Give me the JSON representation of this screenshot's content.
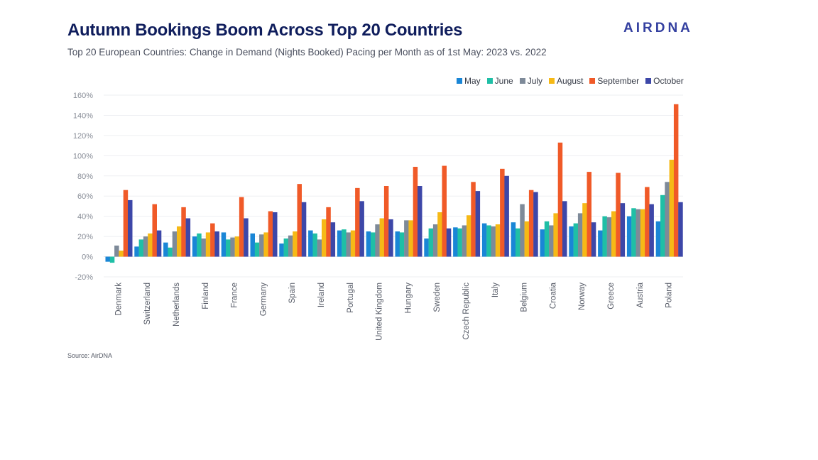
{
  "header": {
    "title": "Autumn Bookings Boom Across Top 20 Countries",
    "subtitle": "Top 20 European Countries: Change in Demand (Nights Booked) Pacing per Month as of 1st May: 2023 vs. 2022",
    "logo": "AIRDNA"
  },
  "footer": {
    "source": "Source: AirDNA"
  },
  "chart_data": {
    "type": "bar",
    "title": "Autumn Bookings Boom Across Top 20 Countries",
    "subtitle": "Top 20 European Countries: Change in Demand (Nights Booked) Pacing per Month as of 1st May: 2023 vs. 2022",
    "xlabel": "",
    "ylabel": "",
    "ylim": [
      -20,
      160
    ],
    "yticks": [
      -20,
      0,
      20,
      40,
      60,
      80,
      100,
      120,
      140,
      160
    ],
    "ytick_labels": [
      "-20%",
      "0%",
      "20%",
      "40%",
      "60%",
      "80%",
      "100%",
      "120%",
      "140%",
      "160%"
    ],
    "grid": true,
    "legend_position": "top-right",
    "categories": [
      "Denmark",
      "Switzerland",
      "Netherlands",
      "Finland",
      "France",
      "Germany",
      "Spain",
      "Ireland",
      "Portugal",
      "United Kingdom",
      "Hungary",
      "Sweden",
      "Czech Republic",
      "Italy",
      "Belgium",
      "Croatia",
      "Norway",
      "Greece",
      "Austria",
      "Poland"
    ],
    "series": [
      {
        "name": "May",
        "color": "#1a86d6",
        "values": [
          -5,
          10,
          14,
          20,
          24,
          23,
          13,
          26,
          26,
          25,
          25,
          18,
          29,
          33,
          34,
          27,
          30,
          26,
          40,
          35
        ]
      },
      {
        "name": "June",
        "color": "#1fbfa6",
        "values": [
          -6,
          17,
          9,
          23,
          17,
          14,
          18,
          23,
          27,
          24,
          24,
          28,
          28,
          31,
          28,
          35,
          33,
          40,
          48,
          61
        ]
      },
      {
        "name": "July",
        "color": "#7e8a99",
        "values": [
          11,
          20,
          25,
          18,
          19,
          22,
          21,
          17,
          24,
          32,
          36,
          32,
          31,
          30,
          52,
          31,
          43,
          39,
          47,
          74
        ]
      },
      {
        "name": "August",
        "color": "#f6b916",
        "values": [
          6,
          23,
          30,
          24,
          20,
          24,
          25,
          37,
          26,
          38,
          36,
          44,
          41,
          32,
          35,
          43,
          53,
          45,
          47,
          96
        ]
      },
      {
        "name": "September",
        "color": "#f05a28",
        "values": [
          66,
          52,
          49,
          33,
          59,
          45,
          72,
          49,
          68,
          70,
          89,
          90,
          74,
          87,
          66,
          113,
          84,
          83,
          69,
          151
        ]
      },
      {
        "name": "October",
        "color": "#3d47a8",
        "values": [
          56,
          26,
          38,
          25,
          38,
          44,
          54,
          34,
          55,
          37,
          70,
          28,
          65,
          80,
          64,
          55,
          34,
          53,
          52,
          54
        ]
      }
    ]
  }
}
